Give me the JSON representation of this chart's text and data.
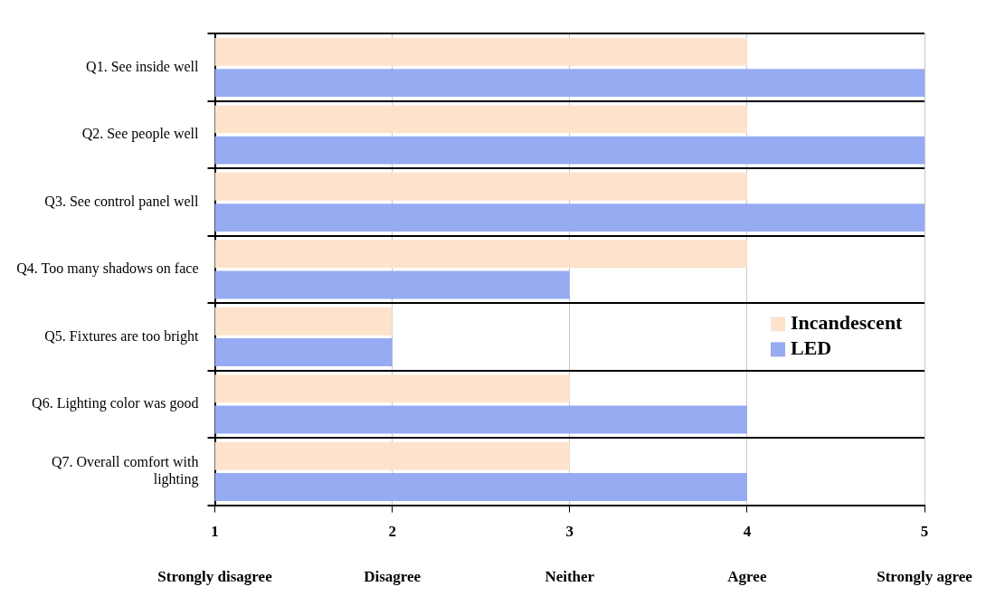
{
  "chart_data": {
    "type": "bar",
    "orientation": "horizontal",
    "categories": [
      "Q1. See inside well",
      "Q2. See people well",
      "Q3. See control panel well",
      "Q4. Too many shadows on face",
      "Q5. Fixtures are too bright",
      "Q6. Lighting color was good",
      "Q7. Overall comfort with lighting"
    ],
    "series": [
      {
        "name": "Incandescent",
        "color": "#fde3cc",
        "values": [
          4,
          4,
          4,
          4,
          2,
          3,
          3
        ]
      },
      {
        "name": "LED",
        "color": "#97abf2",
        "values": [
          5,
          5,
          5,
          3,
          2,
          4,
          4
        ]
      }
    ],
    "xlim": [
      1,
      5
    ],
    "xticks": [
      1,
      2,
      3,
      4,
      5
    ],
    "annotations": [
      "Strongly disagree",
      "Disagree",
      "Neither",
      "Agree",
      "Strongly agree"
    ],
    "grid": true,
    "legend": "right"
  }
}
